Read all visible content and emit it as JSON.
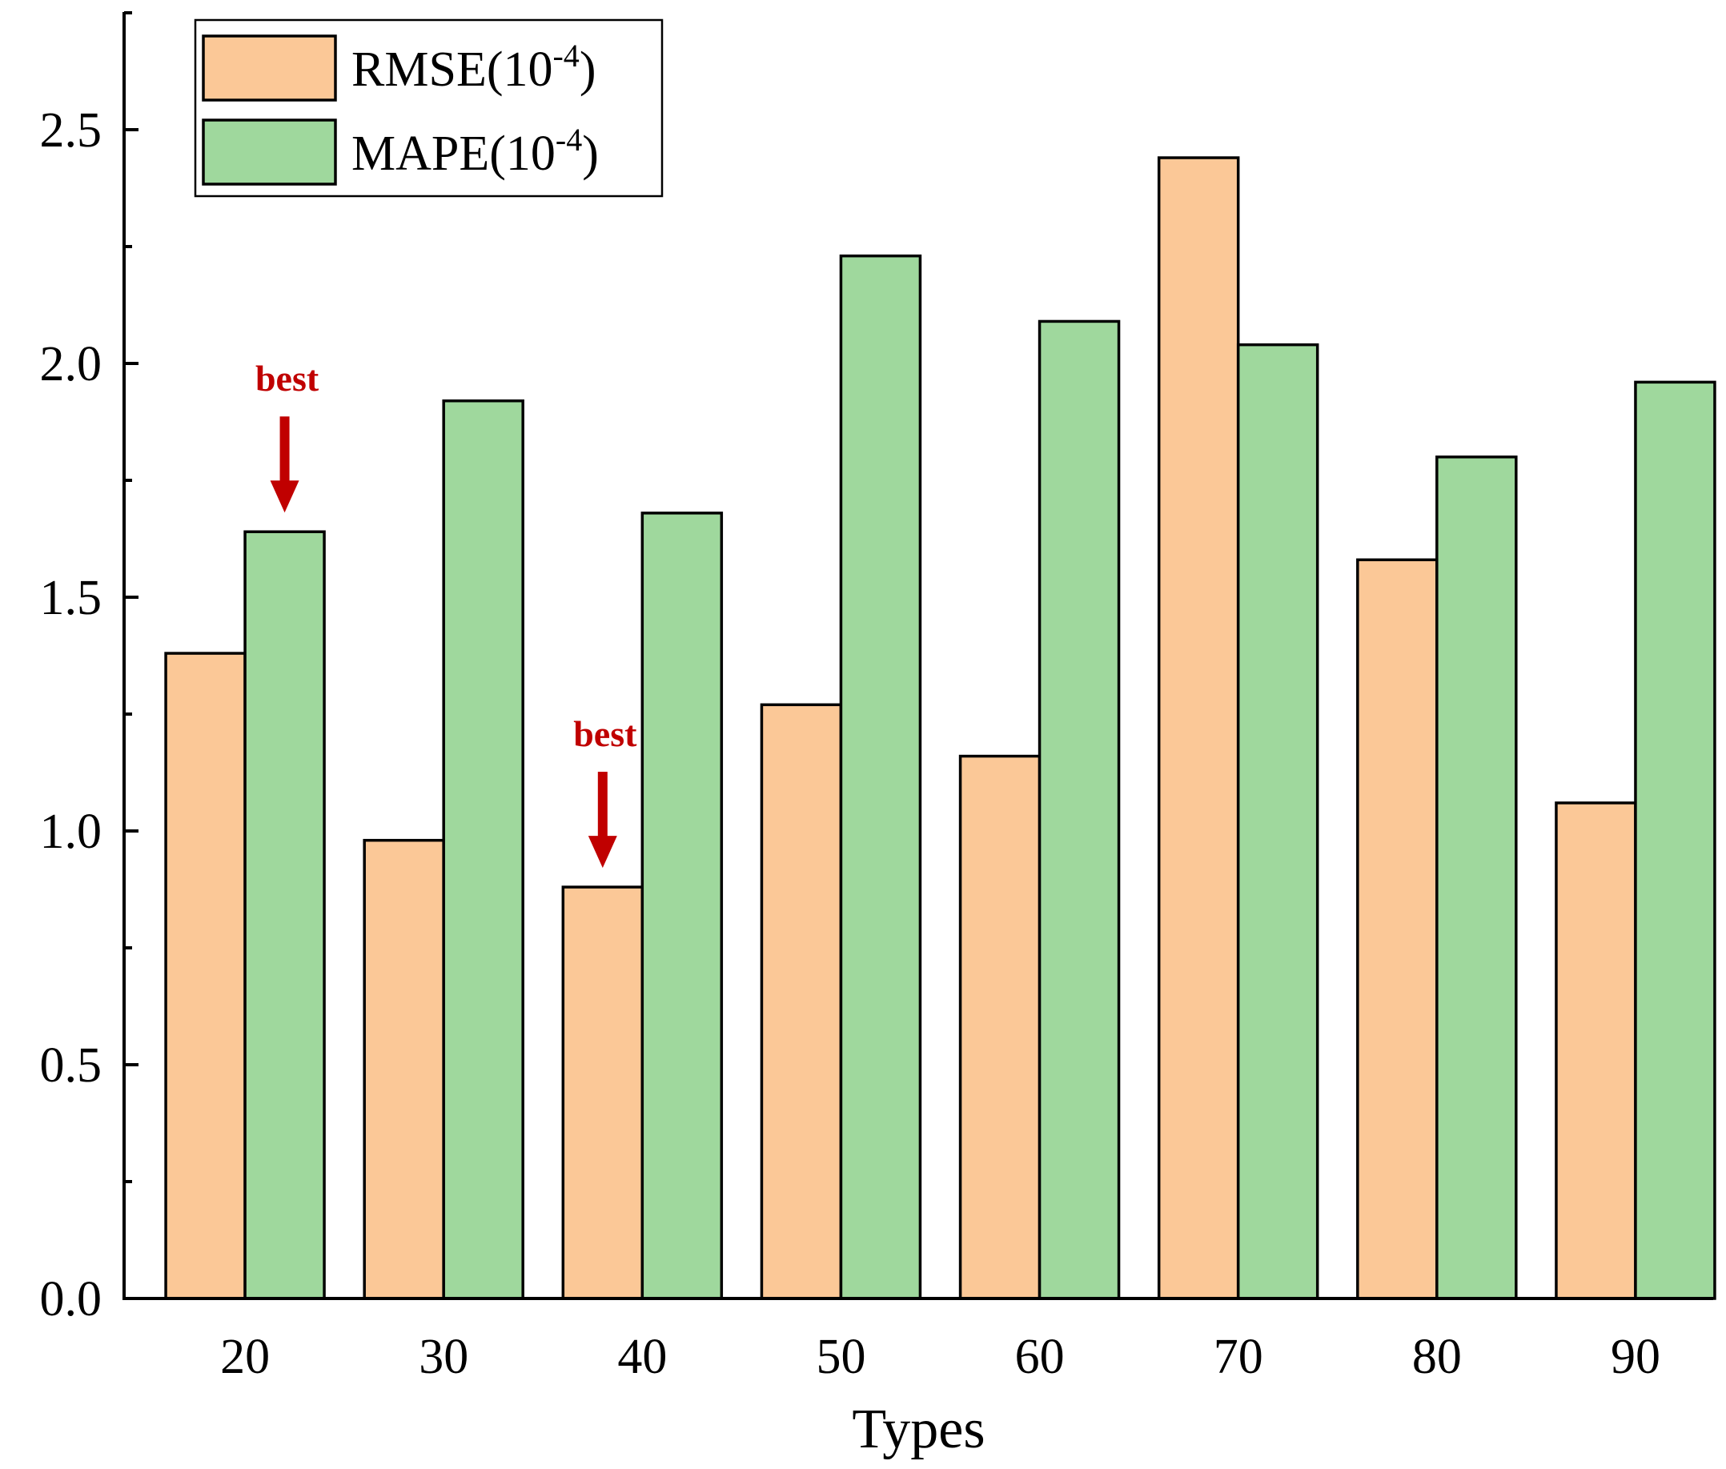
{
  "chart_data": {
    "type": "bar",
    "title": "",
    "xlabel": "Types",
    "ylabel": "",
    "categories": [
      "20",
      "30",
      "40",
      "50",
      "60",
      "70",
      "80",
      "90"
    ],
    "series": [
      {
        "name": "RMSE",
        "legend_base": "RMSE(10",
        "legend_exp": "-4",
        "legend_close": ")",
        "color": "#fbc897",
        "values": [
          1.38,
          0.98,
          0.88,
          1.27,
          1.16,
          2.44,
          1.58,
          1.06
        ]
      },
      {
        "name": "MAPE",
        "legend_base": "MAPE(10",
        "legend_exp": "-4",
        "legend_close": ")",
        "color": "#9fd89d",
        "values": [
          1.64,
          1.92,
          1.68,
          2.23,
          2.09,
          2.04,
          1.8,
          1.96
        ]
      }
    ],
    "ylim": [
      0,
      2.75
    ],
    "yticks": [
      "0.0",
      "0.5",
      "1.0",
      "1.5",
      "2.0",
      "2.5"
    ],
    "ytick_values": [
      0,
      0.5,
      1.0,
      1.5,
      2.0,
      2.5
    ],
    "yminor_values": [
      0.25,
      0.75,
      1.25,
      1.75,
      2.25,
      2.75
    ],
    "legend_position": "top-left",
    "annotations": [
      {
        "text": "best",
        "category": "20",
        "series": "MAPE",
        "color": "#c00000"
      },
      {
        "text": "best",
        "category": "40",
        "series": "RMSE",
        "color": "#c00000"
      }
    ]
  }
}
